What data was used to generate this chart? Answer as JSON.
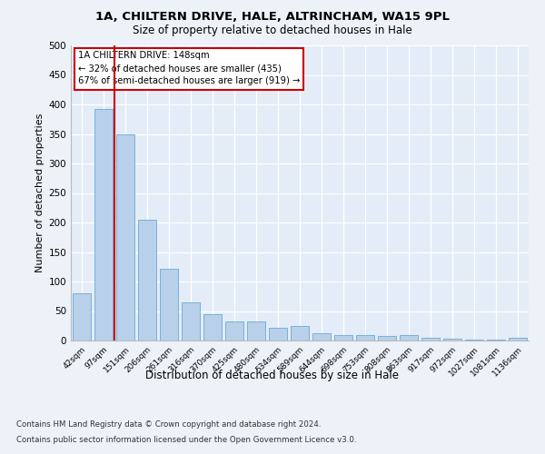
{
  "title_line1": "1A, CHILTERN DRIVE, HALE, ALTRINCHAM, WA15 9PL",
  "title_line2": "Size of property relative to detached houses in Hale",
  "xlabel": "Distribution of detached houses by size in Hale",
  "ylabel": "Number of detached properties",
  "bar_labels": [
    "42sqm",
    "97sqm",
    "151sqm",
    "206sqm",
    "261sqm",
    "316sqm",
    "370sqm",
    "425sqm",
    "480sqm",
    "534sqm",
    "589sqm",
    "644sqm",
    "698sqm",
    "753sqm",
    "808sqm",
    "863sqm",
    "917sqm",
    "972sqm",
    "1027sqm",
    "1081sqm",
    "1136sqm"
  ],
  "bar_values": [
    80,
    392,
    350,
    205,
    122,
    64,
    45,
    32,
    32,
    22,
    24,
    13,
    9,
    10,
    7,
    10,
    4,
    3,
    2,
    2,
    4
  ],
  "bar_color": "#b8d0ea",
  "bar_edge_color": "#6aaad4",
  "vline_color": "#cc0000",
  "annotation_title": "1A CHILTERN DRIVE: 148sqm",
  "annotation_line2": "← 32% of detached houses are smaller (435)",
  "annotation_line3": "67% of semi-detached houses are larger (919) →",
  "annotation_box_color": "#ffffff",
  "annotation_box_edge": "#cc0000",
  "ylim": [
    0,
    500
  ],
  "yticks": [
    0,
    50,
    100,
    150,
    200,
    250,
    300,
    350,
    400,
    450,
    500
  ],
  "footnote_line1": "Contains HM Land Registry data © Crown copyright and database right 2024.",
  "footnote_line2": "Contains public sector information licensed under the Open Government Licence v3.0.",
  "bg_color": "#edf2f9",
  "plot_bg_color": "#e4ecf7"
}
